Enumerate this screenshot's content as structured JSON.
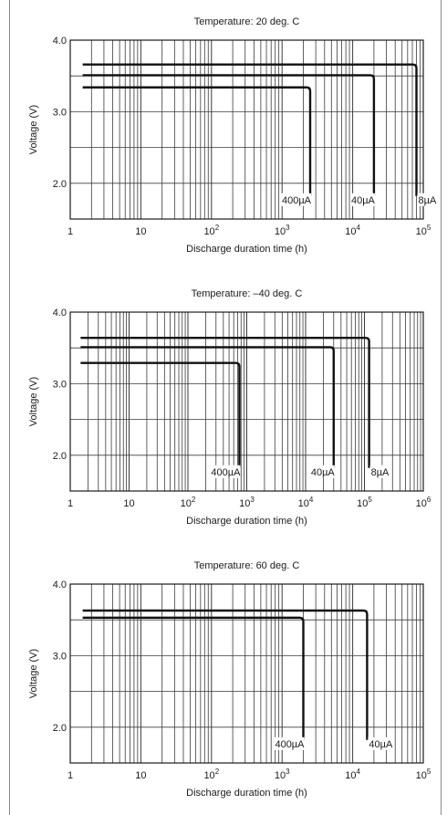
{
  "chart_data": [
    {
      "type": "line",
      "title": "Temperature: 20 deg. C",
      "xlabel": "Discharge duration time (h)",
      "ylabel": "Voltage (V)",
      "x_scale": "log",
      "xlim": [
        1,
        100000
      ],
      "ylim": [
        1.5,
        4.0
      ],
      "x_ticks": [
        {
          "value": 1,
          "label": "1",
          "sup": ""
        },
        {
          "value": 10,
          "label": "10",
          "sup": ""
        },
        {
          "value": 100,
          "label": "10",
          "sup": "2"
        },
        {
          "value": 1000,
          "label": "10",
          "sup": "3"
        },
        {
          "value": 10000,
          "label": "10",
          "sup": "4"
        },
        {
          "value": 100000,
          "label": "10",
          "sup": "5"
        }
      ],
      "y_ticks": [
        {
          "value": 2.0,
          "label": "2.0"
        },
        {
          "value": 3.0,
          "label": "3.0"
        },
        {
          "value": 4.0,
          "label": "4.0"
        }
      ],
      "grid": true,
      "series": [
        {
          "name": "8µA",
          "flat_voltage": 3.66,
          "x_start": 1.5,
          "end_time": 80000
        },
        {
          "name": "40µA",
          "flat_voltage": 3.51,
          "x_start": 1.5,
          "end_time": 20000
        },
        {
          "name": "400µA",
          "flat_voltage": 3.34,
          "x_start": 1.5,
          "end_time": 2500
        }
      ]
    },
    {
      "type": "line",
      "title": "Temperature: –40 deg. C",
      "xlabel": "Discharge duration time (h)",
      "ylabel": "Voltage (V)",
      "x_scale": "log",
      "xlim": [
        1,
        1000000
      ],
      "ylim": [
        1.5,
        4.0
      ],
      "x_ticks": [
        {
          "value": 1,
          "label": "1",
          "sup": ""
        },
        {
          "value": 10,
          "label": "10",
          "sup": ""
        },
        {
          "value": 100,
          "label": "10",
          "sup": "2"
        },
        {
          "value": 1000,
          "label": "10",
          "sup": "3"
        },
        {
          "value": 10000,
          "label": "10",
          "sup": "4"
        },
        {
          "value": 100000,
          "label": "10",
          "sup": "5"
        },
        {
          "value": 1000000,
          "label": "10",
          "sup": "6"
        }
      ],
      "y_ticks": [
        {
          "value": 2.0,
          "label": "2.0"
        },
        {
          "value": 3.0,
          "label": "3.0"
        },
        {
          "value": 4.0,
          "label": "4.0"
        }
      ],
      "grid": true,
      "series": [
        {
          "name": "8µA",
          "flat_voltage": 3.64,
          "x_start": 1.5,
          "end_time": 120000
        },
        {
          "name": "40µA",
          "flat_voltage": 3.51,
          "x_start": 1.5,
          "end_time": 30000
        },
        {
          "name": "400µA",
          "flat_voltage": 3.29,
          "x_start": 1.5,
          "end_time": 750
        }
      ]
    },
    {
      "type": "line",
      "title": "Temperature: 60 deg. C",
      "xlabel": "Discharge duration time (h)",
      "ylabel": "Voltage (V)",
      "x_scale": "log",
      "xlim": [
        1,
        100000
      ],
      "ylim": [
        1.5,
        4.0
      ],
      "x_ticks": [
        {
          "value": 1,
          "label": "1",
          "sup": ""
        },
        {
          "value": 10,
          "label": "10",
          "sup": ""
        },
        {
          "value": 100,
          "label": "10",
          "sup": "2"
        },
        {
          "value": 1000,
          "label": "10",
          "sup": "3"
        },
        {
          "value": 10000,
          "label": "10",
          "sup": "4"
        },
        {
          "value": 100000,
          "label": "10",
          "sup": "5"
        }
      ],
      "y_ticks": [
        {
          "value": 2.0,
          "label": "2.0"
        },
        {
          "value": 3.0,
          "label": "3.0"
        },
        {
          "value": 4.0,
          "label": "4.0"
        }
      ],
      "grid": true,
      "series": [
        {
          "name": "40µA",
          "flat_voltage": 3.63,
          "x_start": 1.5,
          "end_time": 16000
        },
        {
          "name": "400µA",
          "flat_voltage": 3.53,
          "x_start": 1.5,
          "end_time": 2000
        }
      ]
    }
  ]
}
